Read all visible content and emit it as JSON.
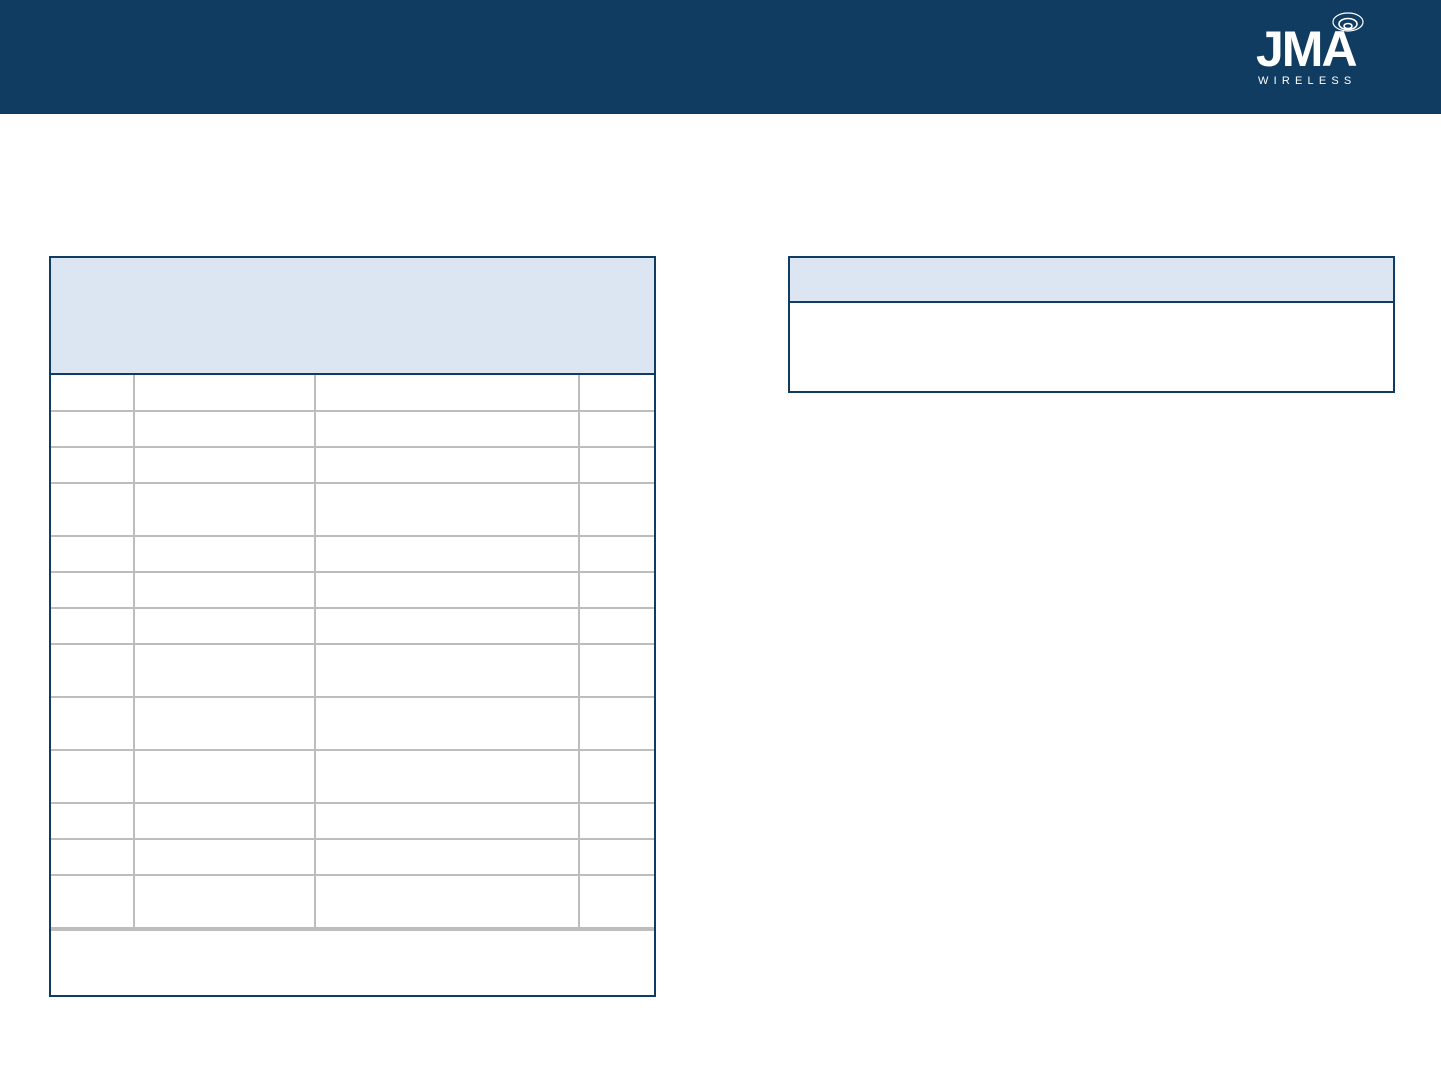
{
  "brand": {
    "logo_text": "JMA",
    "logo_subtext": "WIRELESS",
    "primary_color": "#103c62",
    "header_fill": "#dce6f2"
  },
  "left_table": {
    "row_heights_units": [
      1,
      1,
      1,
      1.5,
      1,
      1,
      1,
      1.5,
      1.5,
      1.5,
      1,
      1,
      1.5
    ],
    "columns": 4
  },
  "right_table": {}
}
